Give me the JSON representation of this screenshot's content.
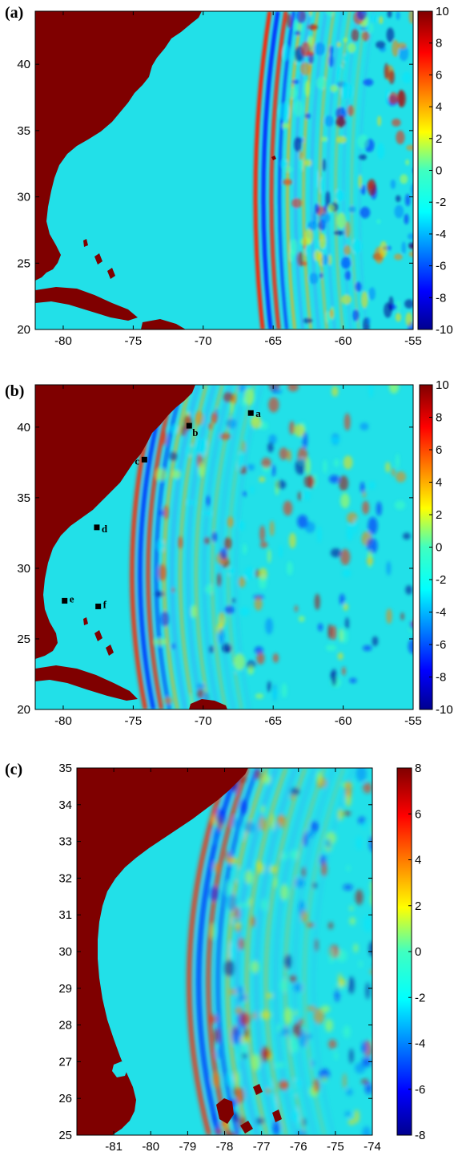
{
  "chart_data": [
    {
      "type": "heatmap",
      "panel_label": "(a)",
      "xlim": [
        -82,
        -55
      ],
      "ylim": [
        20,
        44
      ],
      "xticks": [
        -80,
        -75,
        -70,
        -65,
        -60,
        -55
      ],
      "yticks": [
        20,
        25,
        30,
        35,
        40
      ],
      "xtick_labels": [
        "-80",
        "-75",
        "-70",
        "-65",
        "-60",
        "-55"
      ],
      "ytick_labels": [
        "20",
        "25",
        "30",
        "35",
        "40"
      ],
      "colorbar": {
        "range": [
          -10,
          10
        ],
        "ticks": [
          10,
          8,
          6,
          4,
          2,
          0,
          -2,
          -4,
          -6,
          -8,
          -10
        ],
        "tick_labels": [
          "10",
          "8",
          "6",
          "4",
          "2",
          "0",
          "-2",
          "-4",
          "-6",
          "-8",
          "-10"
        ]
      },
      "land_color": "#7f0000",
      "ocean_color": "#22e0e8",
      "wave_front_lon": -66.5,
      "sites": []
    },
    {
      "type": "heatmap",
      "panel_label": "(b)",
      "xlim": [
        -82,
        -55
      ],
      "ylim": [
        20,
        43
      ],
      "xticks": [
        -80,
        -75,
        -70,
        -65,
        -60,
        -55
      ],
      "yticks": [
        20,
        25,
        30,
        35,
        40
      ],
      "xtick_labels": [
        "-80",
        "-75",
        "-70",
        "-65",
        "-60",
        "-55"
      ],
      "ytick_labels": [
        "20",
        "25",
        "30",
        "35",
        "40"
      ],
      "colorbar": {
        "range": [
          -10,
          10
        ],
        "ticks": [
          10,
          8,
          6,
          4,
          2,
          0,
          -2,
          -4,
          -6,
          -8,
          -10
        ],
        "tick_labels": [
          "10",
          "8",
          "6",
          "4",
          "2",
          "0",
          "-2",
          "-4",
          "-6",
          "-8",
          "-10"
        ]
      },
      "land_color": "#7f0000",
      "ocean_color": "#22e0e8",
      "wave_front_lon": -75.5,
      "sites": [
        {
          "label": "a",
          "lon": -66.6,
          "lat": 41.0
        },
        {
          "label": "b",
          "lon": -71.0,
          "lat": 40.1
        },
        {
          "label": "c",
          "lon": -74.2,
          "lat": 37.7
        },
        {
          "label": "d",
          "lon": -77.6,
          "lat": 32.9
        },
        {
          "label": "e",
          "lon": -79.9,
          "lat": 27.7
        },
        {
          "label": "f",
          "lon": -77.5,
          "lat": 27.3
        }
      ]
    },
    {
      "type": "heatmap",
      "panel_label": "(c)",
      "xlim": [
        -82,
        -74
      ],
      "ylim": [
        25,
        35
      ],
      "xticks": [
        -81,
        -80,
        -79,
        -78,
        -77,
        -76,
        -75,
        -74
      ],
      "yticks": [
        25,
        26,
        27,
        28,
        29,
        30,
        31,
        32,
        33,
        34,
        35
      ],
      "xtick_labels": [
        "-81",
        "-80",
        "-79",
        "-78",
        "-77",
        "-76",
        "-75",
        "-74"
      ],
      "ytick_labels": [
        "25",
        "26",
        "27",
        "28",
        "29",
        "30",
        "31",
        "32",
        "33",
        "34",
        "35"
      ],
      "colorbar": {
        "range": [
          -8,
          8
        ],
        "ticks": [
          8,
          6,
          4,
          2,
          0,
          -2,
          -4,
          -6,
          -8
        ],
        "tick_labels": [
          "8",
          "6",
          "4",
          "2",
          "0",
          "-2",
          "-4",
          "-6",
          "-8"
        ]
      },
      "land_color": "#7f0000",
      "ocean_color": "#22e0e8",
      "wave_front_lon": -79.2,
      "sites": []
    }
  ]
}
